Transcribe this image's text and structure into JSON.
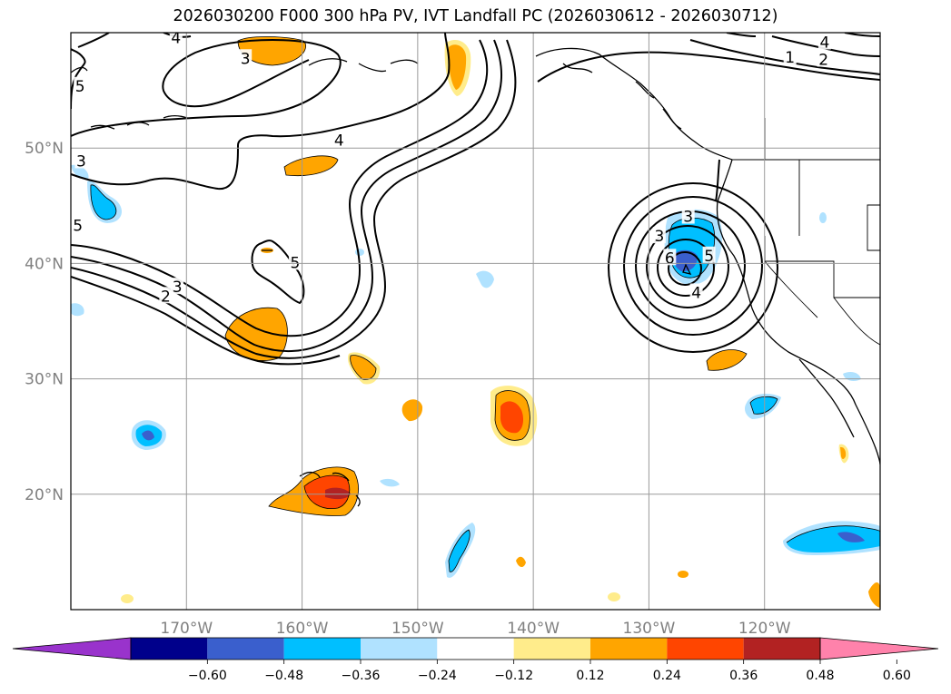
{
  "title": "2026030200 F000 300 hPa PV, IVT Landfall PC (2026030612 - 2026030712)",
  "map": {
    "lon_range": [
      -180,
      -110
    ],
    "lat_range": [
      10,
      60
    ],
    "lon_ticks": [
      {
        "value": -170,
        "label": "170°W"
      },
      {
        "value": -160,
        "label": "160°W"
      },
      {
        "value": -150,
        "label": "150°W"
      },
      {
        "value": -140,
        "label": "140°W"
      },
      {
        "value": -130,
        "label": "130°W"
      },
      {
        "value": -120,
        "label": "120°W"
      }
    ],
    "lat_ticks": [
      {
        "value": 20,
        "label": "20°N"
      },
      {
        "value": 30,
        "label": "30°N"
      },
      {
        "value": 40,
        "label": "40°N"
      },
      {
        "value": 50,
        "label": "50°N"
      }
    ],
    "contour_labels": [
      {
        "text": "4",
        "lon": -170.9,
        "lat": 59.5
      },
      {
        "text": "3",
        "lon": -164.9,
        "lat": 57.7
      },
      {
        "text": "5",
        "lon": -179.2,
        "lat": 55.3
      },
      {
        "text": "4",
        "lon": -156.8,
        "lat": 50.6
      },
      {
        "text": "3",
        "lon": -179.1,
        "lat": 48.8
      },
      {
        "text": "5",
        "lon": -179.4,
        "lat": 43.2
      },
      {
        "text": "5",
        "lon": -160.6,
        "lat": 40.0
      },
      {
        "text": "3",
        "lon": -170.8,
        "lat": 37.9
      },
      {
        "text": "2",
        "lon": -171.8,
        "lat": 37.1
      },
      {
        "text": "1",
        "lon": -117.8,
        "lat": 57.8
      },
      {
        "text": "2",
        "lon": -114.9,
        "lat": 57.6
      },
      {
        "text": "4",
        "lon": -114.8,
        "lat": 59.1
      },
      {
        "text": "3",
        "lon": -126.6,
        "lat": 44.0
      },
      {
        "text": "3",
        "lon": -129.1,
        "lat": 42.3
      },
      {
        "text": "6",
        "lon": -128.2,
        "lat": 40.4
      },
      {
        "text": "5",
        "lon": -124.8,
        "lat": 40.6
      },
      {
        "text": "4",
        "lon": -125.9,
        "lat": 37.4
      }
    ]
  },
  "colorbar": {
    "colors": [
      "#9933cc",
      "#00008b",
      "#3a5fcd",
      "#00bfff",
      "#b0e2ff",
      "#ffffff",
      "#ffec8b",
      "#ffa500",
      "#ff4500",
      "#b22222",
      "#ff82ab"
    ],
    "tick_labels": [
      "−0.60",
      "−0.48",
      "−0.36",
      "−0.24",
      "−0.12",
      "0.12",
      "0.24",
      "0.36",
      "0.48",
      "0.60"
    ]
  }
}
